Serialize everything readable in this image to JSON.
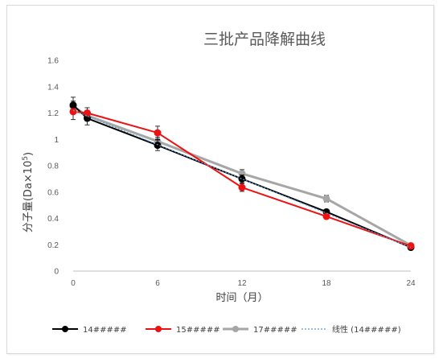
{
  "chart_data": {
    "type": "line",
    "title": "三批产品降解曲线",
    "xlabel": "时间（月）",
    "ylabel": "分子量(Da×10",
    "ylabel_sup": "5",
    "ylabel_end": ")",
    "xlim": [
      0,
      24
    ],
    "ylim": [
      0,
      1.6
    ],
    "x_ticks": [
      "0",
      "6",
      "12",
      "18",
      "24"
    ],
    "y_ticks": [
      "0",
      "0.2",
      "0.4",
      "0.6",
      "0.8",
      "1",
      "1.2",
      "1.4",
      "1.6"
    ],
    "grid": false,
    "legend_position": "bottom",
    "series": [
      {
        "name": "14#####",
        "color": "#000000",
        "points": [
          {
            "x": 0,
            "y": 1.26,
            "err": 0.06
          },
          {
            "x": 1,
            "y": 1.16,
            "err": 0.05
          },
          {
            "x": 6,
            "y": 0.955,
            "err": 0.04
          },
          {
            "x": 12,
            "y": 0.7,
            "err": 0.03
          },
          {
            "x": 18,
            "y": 0.45,
            "err": 0.015
          },
          {
            "x": 24,
            "y": 0.18,
            "err": 0.01
          }
        ]
      },
      {
        "name": "15#####",
        "color": "#ee1111",
        "points": [
          {
            "x": 0,
            "y": 1.21,
            "err": 0.06
          },
          {
            "x": 1,
            "y": 1.2,
            "err": 0.04
          },
          {
            "x": 6,
            "y": 1.05,
            "err": 0.05
          },
          {
            "x": 12,
            "y": 0.635,
            "err": 0.03
          },
          {
            "x": 18,
            "y": 0.415,
            "err": 0.015
          },
          {
            "x": 24,
            "y": 0.19,
            "err": 0.01
          }
        ]
      },
      {
        "name": "17#####",
        "color": "#a6a6a6",
        "points": [
          {
            "x": 0,
            "y": 1.25,
            "err": 0.04
          },
          {
            "x": 1,
            "y": 1.18,
            "err": 0.04
          },
          {
            "x": 6,
            "y": 0.985,
            "err": 0.03
          },
          {
            "x": 12,
            "y": 0.74,
            "err": 0.03
          },
          {
            "x": 18,
            "y": 0.55,
            "err": 0.025
          },
          {
            "x": 24,
            "y": 0.195,
            "err": 0.01
          }
        ]
      }
    ],
    "trendline": {
      "name": "线性 (14#####)",
      "color": "#5b9bd5",
      "x": [
        0,
        24
      ],
      "y": [
        1.22,
        0.18
      ]
    }
  }
}
